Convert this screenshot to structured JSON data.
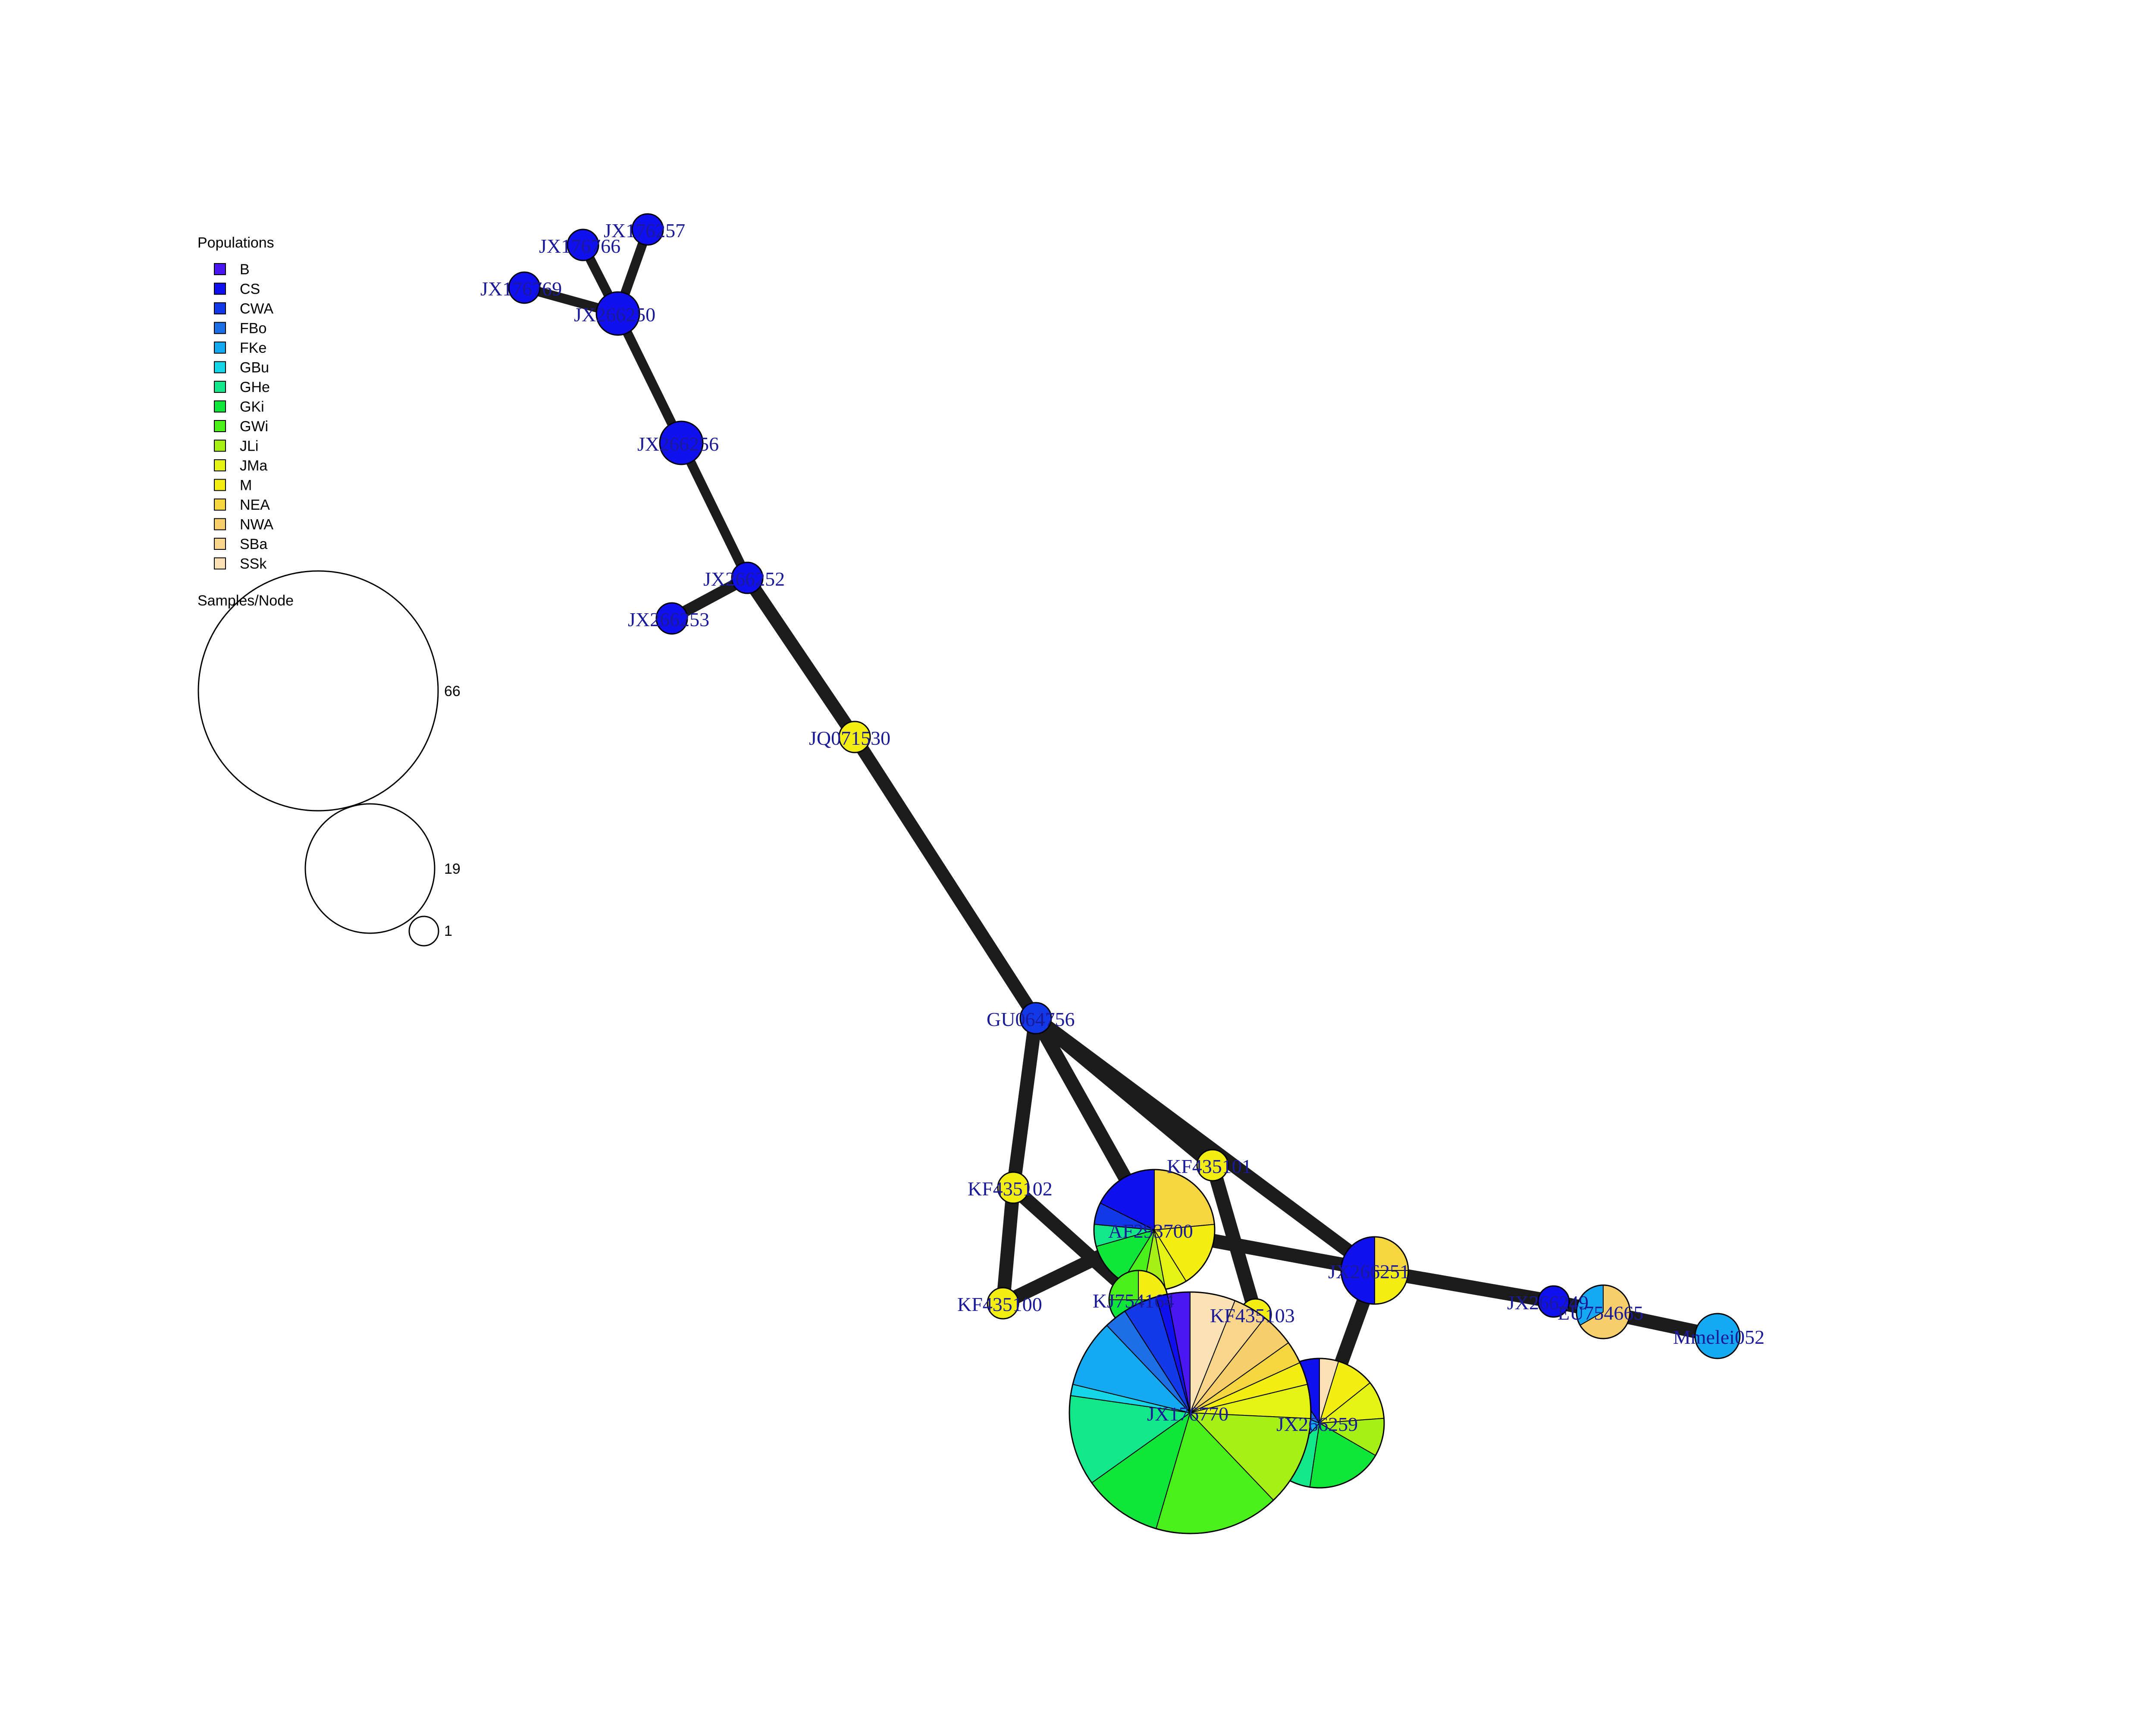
{
  "legend": {
    "populations_title": "Populations",
    "populations": [
      {
        "name": "B",
        "color": "#4a17f2"
      },
      {
        "name": "CS",
        "color": "#1010ee"
      },
      {
        "name": "CWA",
        "color": "#1238e8"
      },
      {
        "name": "FBo",
        "color": "#1e6fe6"
      },
      {
        "name": "FKe",
        "color": "#14a9f0"
      },
      {
        "name": "GBu",
        "color": "#14d6e8"
      },
      {
        "name": "GHe",
        "color": "#12e88a"
      },
      {
        "name": "GKi",
        "color": "#10e63a"
      },
      {
        "name": "GWi",
        "color": "#49f019"
      },
      {
        "name": "JLi",
        "color": "#a6f016"
      },
      {
        "name": "JMa",
        "color": "#e4f214"
      },
      {
        "name": "M",
        "color": "#f2ee12"
      },
      {
        "name": "NEA",
        "color": "#f5d640"
      },
      {
        "name": "NWA",
        "color": "#f7cf6a"
      },
      {
        "name": "SBa",
        "color": "#f9d68a"
      },
      {
        "name": "SSk",
        "color": "#fbe2b4"
      }
    ],
    "size_title": "Samples/Node",
    "size_scale": [
      {
        "label": "66",
        "value": 66
      },
      {
        "label": "19",
        "value": 19
      },
      {
        "label": "1",
        "value": 1
      }
    ]
  },
  "network": {
    "nodes": [
      {
        "id": "JX176257",
        "label": "JX176257",
        "samples": 1,
        "color": "#1010ee"
      },
      {
        "id": "JX176766",
        "label": "JX176766",
        "samples": 1,
        "color": "#1010ee"
      },
      {
        "id": "JX176769",
        "label": "JX176769",
        "samples": 1,
        "color": "#1010ee"
      },
      {
        "id": "JX266250",
        "label": "JX266250",
        "samples": 2,
        "color": "#1010ee"
      },
      {
        "id": "JX266256",
        "label": "JX266256",
        "samples": 2,
        "color": "#1010ee"
      },
      {
        "id": "JX266252",
        "label": "JX266252",
        "samples": 1,
        "color": "#1010ee"
      },
      {
        "id": "JX266253",
        "label": "JX266253",
        "samples": 1,
        "color": "#1010ee"
      },
      {
        "id": "JQ071530",
        "label": "JQ071530",
        "samples": 1,
        "color": "#f2ee12"
      },
      {
        "id": "GU064756",
        "label": "GU064756",
        "samples": 1,
        "color": "#1238e8"
      },
      {
        "id": "KF435102",
        "label": "KF435102",
        "samples": 1,
        "color": "#f2ee12"
      },
      {
        "id": "KF435101",
        "label": "KF435101",
        "samples": 1,
        "color": "#f2ee12"
      },
      {
        "id": "KF435100",
        "label": "KF435100",
        "samples": 1,
        "color": "#f2ee12"
      },
      {
        "id": "KF435103",
        "label": "KF435103",
        "samples": 1,
        "color": "#f2ee12"
      },
      {
        "id": "AF293700",
        "label": "AF293700",
        "pie": [
          {
            "pop": "NEA",
            "value": 4,
            "color": "#f5d640"
          },
          {
            "pop": "M",
            "value": 3,
            "color": "#f2ee12"
          },
          {
            "pop": "JMa",
            "value": 1,
            "color": "#e4f214"
          },
          {
            "pop": "JLi",
            "value": 1,
            "color": "#a6f016"
          },
          {
            "pop": "GWi",
            "value": 1,
            "color": "#49f019"
          },
          {
            "pop": "GKi",
            "value": 2,
            "color": "#10e63a"
          },
          {
            "pop": "GHe",
            "value": 1,
            "color": "#12e88a"
          },
          {
            "pop": "CWA",
            "value": 1,
            "color": "#1238e8"
          },
          {
            "pop": "CS",
            "value": 3,
            "color": "#1010ee"
          }
        ]
      },
      {
        "id": "KJ754164",
        "label": "KJ754164",
        "pie": [
          {
            "pop": "M",
            "value": 1,
            "color": "#f2ee12"
          },
          {
            "pop": "GKi",
            "value": 2,
            "color": "#10e63a"
          },
          {
            "pop": "GWi",
            "value": 1,
            "color": "#49f019"
          }
        ]
      },
      {
        "id": "JX176770",
        "label": "JX176770",
        "pie": [
          {
            "pop": "SSk",
            "value": 4,
            "color": "#fbe2b4"
          },
          {
            "pop": "SBa",
            "value": 3,
            "color": "#f9d68a"
          },
          {
            "pop": "NWA",
            "value": 3,
            "color": "#f7cf6a"
          },
          {
            "pop": "NEA",
            "value": 2,
            "color": "#f5d640"
          },
          {
            "pop": "M",
            "value": 2,
            "color": "#f2ee12"
          },
          {
            "pop": "JMa",
            "value": 3,
            "color": "#e4f214"
          },
          {
            "pop": "JLi",
            "value": 8,
            "color": "#a6f016"
          },
          {
            "pop": "GWi",
            "value": 11,
            "color": "#49f019"
          },
          {
            "pop": "GKi",
            "value": 7,
            "color": "#10e63a"
          },
          {
            "pop": "GHe",
            "value": 8,
            "color": "#12e88a"
          },
          {
            "pop": "GBu",
            "value": 1,
            "color": "#14d6e8"
          },
          {
            "pop": "FKe",
            "value": 6,
            "color": "#14a9f0"
          },
          {
            "pop": "FBo",
            "value": 2,
            "color": "#1e6fe6"
          },
          {
            "pop": "CWA",
            "value": 3,
            "color": "#1238e8"
          },
          {
            "pop": "CS",
            "value": 1,
            "color": "#1010ee"
          },
          {
            "pop": "B",
            "value": 2,
            "color": "#4a17f2"
          }
        ]
      },
      {
        "id": "JX266259",
        "label": "JX266259",
        "pie": [
          {
            "pop": "SSk",
            "value": 0.5,
            "color": "#fbe2b4"
          },
          {
            "pop": "M",
            "value": 1,
            "color": "#f2ee12"
          },
          {
            "pop": "JMa",
            "value": 1,
            "color": "#e4f214"
          },
          {
            "pop": "JLi",
            "value": 1,
            "color": "#a6f016"
          },
          {
            "pop": "GKi",
            "value": 2,
            "color": "#10e63a"
          },
          {
            "pop": "GHe",
            "value": 1,
            "color": "#12e88a"
          },
          {
            "pop": "FKe",
            "value": 2,
            "color": "#14a9f0"
          },
          {
            "pop": "FBo",
            "value": 1,
            "color": "#1e6fe6"
          },
          {
            "pop": "CS",
            "value": 1,
            "color": "#1010ee"
          }
        ]
      },
      {
        "id": "JX266251",
        "label": "JX266251",
        "pie": [
          {
            "pop": "NEA",
            "value": 1,
            "color": "#f5d640"
          },
          {
            "pop": "M",
            "value": 1,
            "color": "#f2ee12"
          },
          {
            "pop": "CS",
            "value": 2,
            "color": "#1010ee"
          }
        ]
      },
      {
        "id": "JX266249",
        "label": "JX266249",
        "samples": 1,
        "color": "#1010ee"
      },
      {
        "id": "EU754665",
        "label": "EU754665",
        "pie": [
          {
            "pop": "NWA",
            "value": 2,
            "color": "#f7cf6a"
          },
          {
            "pop": "FKe",
            "value": 1,
            "color": "#14a9f0"
          }
        ]
      },
      {
        "id": "Mmelei052",
        "label": "Mmelei052",
        "samples": 2,
        "color": "#14a9f0"
      }
    ],
    "edges": [
      {
        "from": "JX176257",
        "to": "JX266250"
      },
      {
        "from": "JX176766",
        "to": "JX266250"
      },
      {
        "from": "JX176769",
        "to": "JX266250"
      },
      {
        "from": "JX266250",
        "to": "JX266256"
      },
      {
        "from": "JX266256",
        "to": "JX266252"
      },
      {
        "from": "JX266252",
        "to": "JX266253"
      },
      {
        "from": "JX266252",
        "to": "JQ071530"
      },
      {
        "from": "JQ071530",
        "to": "GU064756"
      },
      {
        "from": "GU064756",
        "to": "KF435102"
      },
      {
        "from": "GU064756",
        "to": "AF293700"
      },
      {
        "from": "GU064756",
        "to": "KF435101"
      },
      {
        "from": "GU064756",
        "to": "JX266251"
      },
      {
        "from": "KF435102",
        "to": "KF435100"
      },
      {
        "from": "KF435102",
        "to": "KJ754164"
      },
      {
        "from": "KF435100",
        "to": "AF293700"
      },
      {
        "from": "KF435101",
        "to": "KF435103"
      },
      {
        "from": "AF293700",
        "to": "JX266251"
      },
      {
        "from": "KJ754164",
        "to": "JX176770"
      },
      {
        "from": "JX266251",
        "to": "JX266259"
      },
      {
        "from": "JX266251",
        "to": "JX266249"
      },
      {
        "from": "JX266249",
        "to": "EU754665"
      },
      {
        "from": "EU754665",
        "to": "Mmelei052"
      }
    ]
  }
}
